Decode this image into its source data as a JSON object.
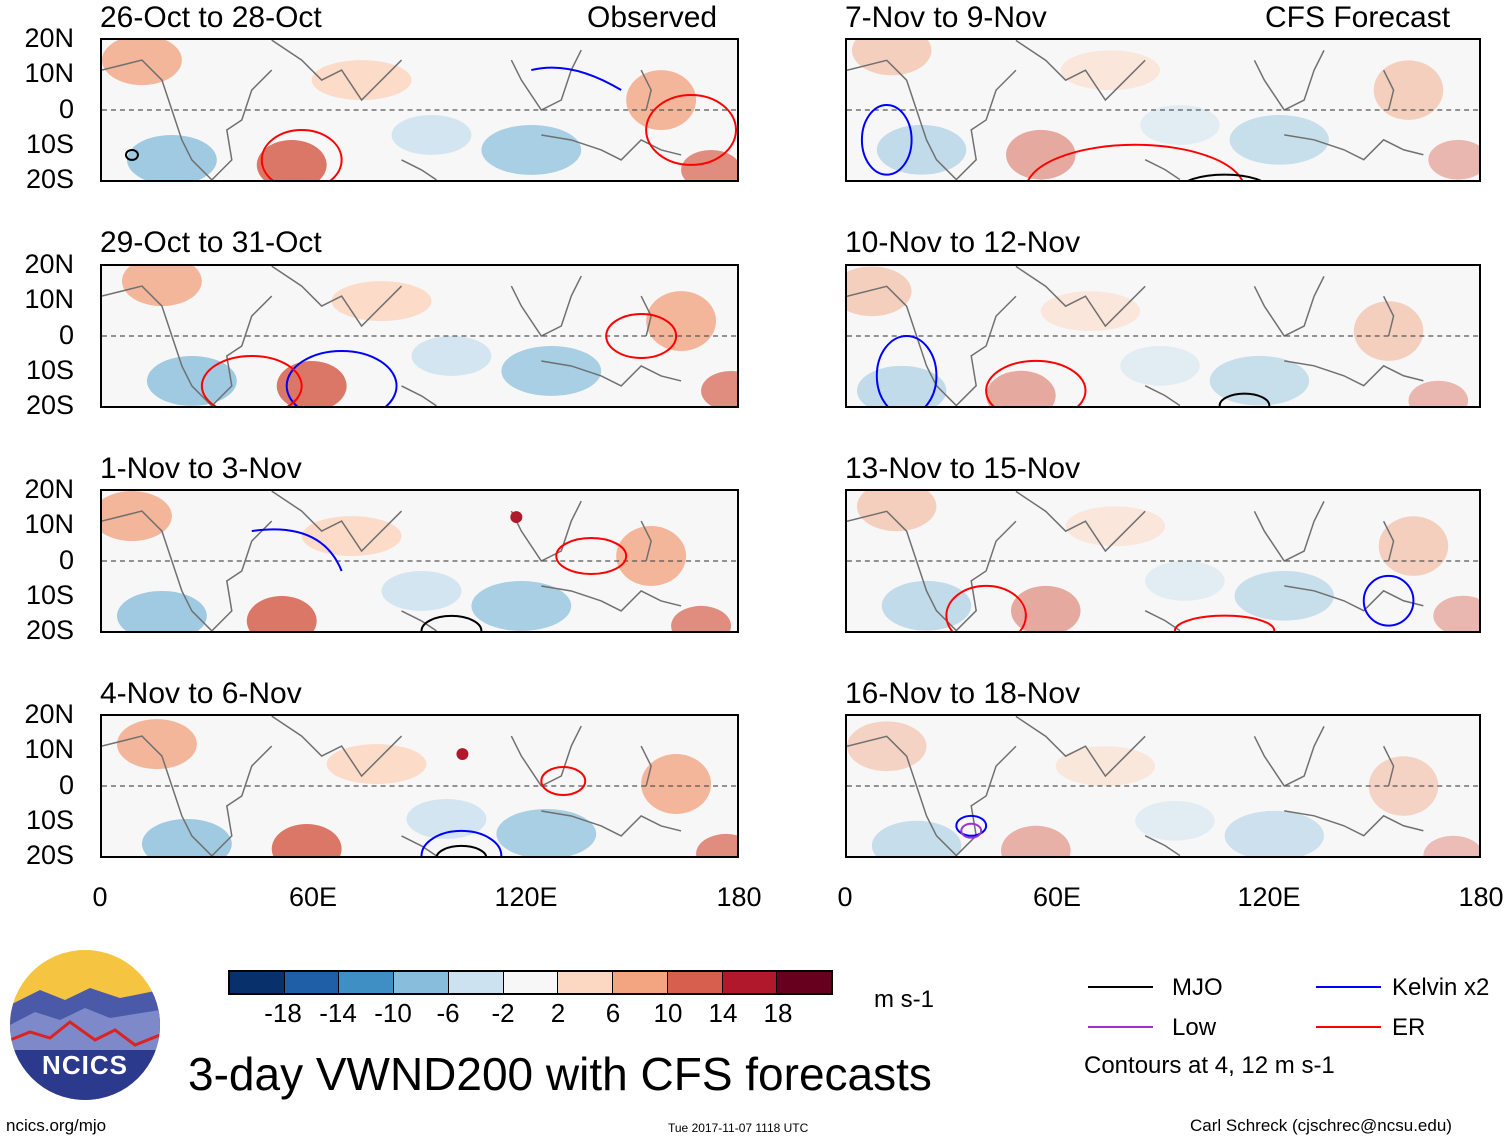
{
  "header": {
    "observed_label": "Observed",
    "forecast_label": "CFS Forecast"
  },
  "panels": {
    "left": [
      {
        "title": "26-Oct to 28-Oct"
      },
      {
        "title": "29-Oct to 31-Oct"
      },
      {
        "title": "1-Nov to 3-Nov"
      },
      {
        "title": "4-Nov to 6-Nov"
      }
    ],
    "right": [
      {
        "title": "7-Nov to 9-Nov"
      },
      {
        "title": "10-Nov to 12-Nov"
      },
      {
        "title": "13-Nov to 15-Nov"
      },
      {
        "title": "16-Nov to 18-Nov"
      }
    ]
  },
  "axes": {
    "lat_labels": [
      "20N",
      "10N",
      "0",
      "10S",
      "20S"
    ],
    "lon_labels": [
      "0",
      "60E",
      "120E",
      "180"
    ]
  },
  "colorbar": {
    "ticks": [
      "-18",
      "-14",
      "-10",
      "-6",
      "-2",
      "2",
      "6",
      "10",
      "14",
      "18"
    ],
    "colors": [
      "#08306b",
      "#1f5fa8",
      "#3f8fc5",
      "#88bedc",
      "#cde2f0",
      "#f7f7f7",
      "#fcd7c2",
      "#f3a582",
      "#d6604d",
      "#b2182b",
      "#67001f"
    ],
    "units": "m s-1"
  },
  "legend": {
    "mjo": "MJO",
    "kelvin": "Kelvin x2",
    "low": "Low",
    "er": "ER",
    "contours": "Contours at 4, 12 m s-1",
    "colors": {
      "mjo": "#000000",
      "kelvin": "#0000ff",
      "low": "#9933cc",
      "er": "#ff0000"
    }
  },
  "logo": {
    "text": "NCICS"
  },
  "footer": {
    "title": "3-day VWND200 with CFS forecasts",
    "url": "ncics.org/mjo",
    "timestamp": "Tue 2017-11-07 1118 UTC",
    "author": "Carl Schreck (cjschrec@ncsu.edu)"
  }
}
